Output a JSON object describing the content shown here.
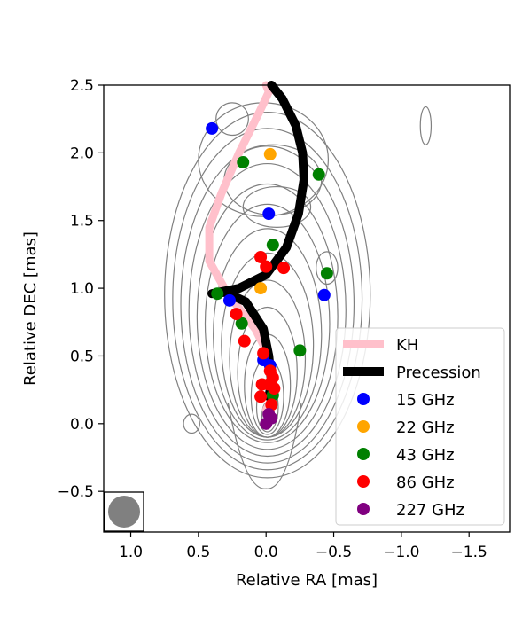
{
  "chart_data": {
    "type": "scatter",
    "xlabel": "Relative RA [mas]",
    "ylabel": "Relative DEC [mas]",
    "xlim": [
      1.2,
      -1.8
    ],
    "ylim": [
      -0.8,
      2.5
    ],
    "x_inverted": true,
    "xticks": [
      1.0,
      0.5,
      0.0,
      -0.5,
      -1.0,
      -1.5
    ],
    "xtick_labels": [
      "1.0",
      "0.5",
      "0.0",
      "−0.5",
      "−1.0",
      "−1.5"
    ],
    "yticks": [
      -0.5,
      0.0,
      0.5,
      1.0,
      1.5,
      2.0,
      2.5
    ],
    "ytick_labels": [
      "−0.5",
      "0.0",
      "0.5",
      "1.0",
      "1.5",
      "2.0",
      "2.5"
    ],
    "grid": false,
    "legend_position": "lower-right",
    "lines": [
      {
        "name": "KH",
        "color": "#ffc0cb",
        "points": [
          [
            0.0,
            2.5
          ],
          [
            -0.02,
            2.45
          ],
          [
            0.05,
            2.3
          ],
          [
            0.2,
            2.0
          ],
          [
            0.33,
            1.7
          ],
          [
            0.42,
            1.45
          ],
          [
            0.42,
            1.2
          ],
          [
            0.28,
            0.95
          ],
          [
            0.08,
            0.7
          ],
          [
            -0.02,
            0.5
          ],
          [
            -0.05,
            0.2
          ],
          [
            0.0,
            0.1
          ]
        ]
      },
      {
        "name": "Precession",
        "color": "#000000",
        "points": [
          [
            -0.04,
            2.5
          ],
          [
            -0.12,
            2.4
          ],
          [
            -0.22,
            2.2
          ],
          [
            -0.27,
            2.0
          ],
          [
            -0.28,
            1.8
          ],
          [
            -0.24,
            1.55
          ],
          [
            -0.15,
            1.3
          ],
          [
            0.0,
            1.1
          ],
          [
            0.2,
            1.0
          ],
          [
            0.4,
            0.96
          ],
          [
            0.3,
            0.97
          ],
          [
            0.15,
            0.9
          ],
          [
            0.02,
            0.7
          ],
          [
            -0.02,
            0.5
          ],
          [
            -0.04,
            0.3
          ],
          [
            -0.02,
            0.2
          ]
        ]
      }
    ],
    "series": [
      {
        "name": "15 GHz",
        "color": "#0000ff",
        "points": [
          [
            0.4,
            2.18
          ],
          [
            -0.02,
            1.55
          ],
          [
            0.27,
            0.91
          ],
          [
            -0.43,
            0.95
          ],
          [
            0.02,
            0.47
          ],
          [
            -0.03,
            0.43
          ]
        ]
      },
      {
        "name": "22 GHz",
        "color": "#ffa500",
        "points": [
          [
            -0.03,
            1.99
          ],
          [
            0.04,
            1.0
          ]
        ]
      },
      {
        "name": "43 GHz",
        "color": "#008000",
        "points": [
          [
            0.17,
            1.93
          ],
          [
            -0.39,
            1.84
          ],
          [
            -0.05,
            1.32
          ],
          [
            -0.45,
            1.11
          ],
          [
            0.36,
            0.96
          ],
          [
            0.18,
            0.74
          ],
          [
            -0.25,
            0.54
          ],
          [
            -0.05,
            0.21
          ]
        ]
      },
      {
        "name": "86 GHz",
        "color": "#ff0000",
        "points": [
          [
            0.04,
            1.23
          ],
          [
            0.0,
            1.16
          ],
          [
            -0.13,
            1.15
          ],
          [
            0.22,
            0.81
          ],
          [
            0.16,
            0.61
          ],
          [
            0.02,
            0.52
          ],
          [
            -0.03,
            0.39
          ],
          [
            -0.05,
            0.34
          ],
          [
            -0.02,
            0.29
          ],
          [
            0.03,
            0.29
          ],
          [
            -0.06,
            0.26
          ],
          [
            0.04,
            0.2
          ],
          [
            -0.04,
            0.14
          ]
        ]
      },
      {
        "name": "227 GHz",
        "color": "#800080",
        "points": [
          [
            -0.02,
            0.07
          ],
          [
            -0.04,
            0.04
          ],
          [
            0.0,
            0.0
          ]
        ]
      }
    ],
    "contour_color": "#808080",
    "beam_color": "#808080"
  }
}
